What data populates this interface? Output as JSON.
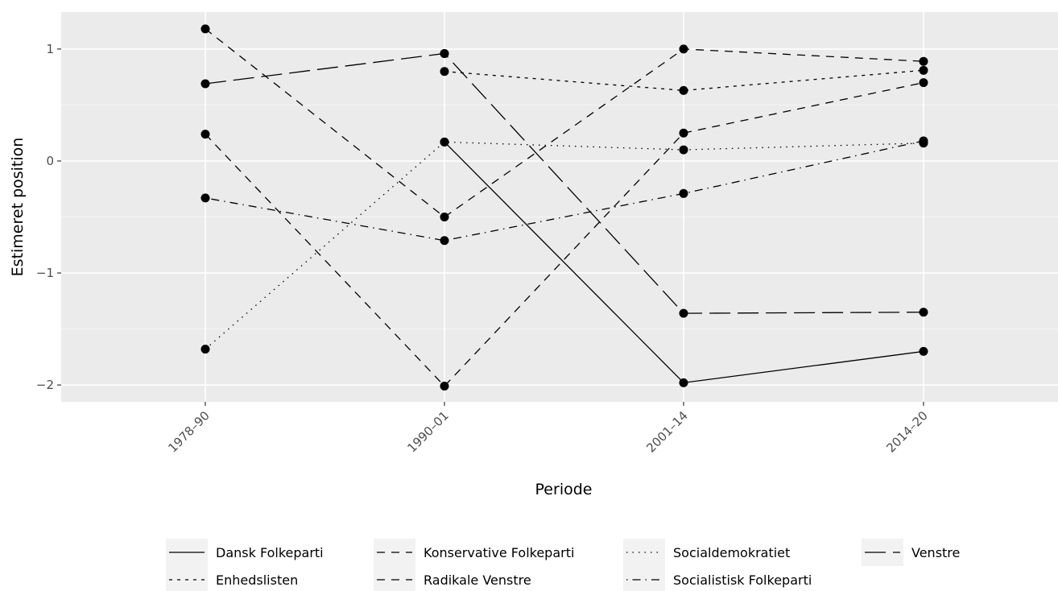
{
  "chart_data": {
    "type": "line",
    "title": "",
    "xlabel": "Periode",
    "ylabel": "Estimeret position",
    "categories": [
      "1978–90",
      "1990–01",
      "2001–14",
      "2014–20"
    ],
    "ylim": [
      -2.15,
      1.33
    ],
    "yticks": [
      1,
      0,
      -1,
      -2
    ],
    "ytick_labels": [
      "1",
      "0",
      "−1",
      "−2"
    ],
    "grid": true,
    "legend_position": "bottom",
    "series": [
      {
        "name": "Dansk Folkeparti",
        "dash": "solid",
        "values": [
          null,
          0.17,
          -1.98,
          -1.7
        ]
      },
      {
        "name": "Enhedslisten",
        "dash": "dashed-short",
        "values": [
          null,
          0.8,
          0.63,
          0.81
        ]
      },
      {
        "name": "Konservative Folkeparti",
        "dash": "dashed",
        "values": [
          1.18,
          -0.5,
          1.0,
          0.89
        ]
      },
      {
        "name": "Radikale Venstre",
        "dash": "dashed",
        "values": [
          0.24,
          -2.01,
          0.25,
          0.7
        ]
      },
      {
        "name": "Socialdemokratiet",
        "dash": "dotted",
        "values": [
          -1.68,
          0.17,
          0.1,
          0.16
        ]
      },
      {
        "name": "Socialistisk Folkeparti",
        "dash": "dotdash",
        "values": [
          -0.33,
          -0.71,
          -0.29,
          0.18
        ]
      },
      {
        "name": "Venstre",
        "dash": "longdash",
        "values": [
          0.69,
          0.96,
          -1.36,
          -1.35
        ]
      },
      {
        "name": "",
        "dash": "longdash",
        "values": [
          null,
          0.96,
          null,
          null
        ]
      },
      {
        "name": "",
        "dash": "longdash",
        "values": [
          null,
          null,
          null,
          null
        ]
      }
    ],
    "extra_lines_note": ""
  }
}
